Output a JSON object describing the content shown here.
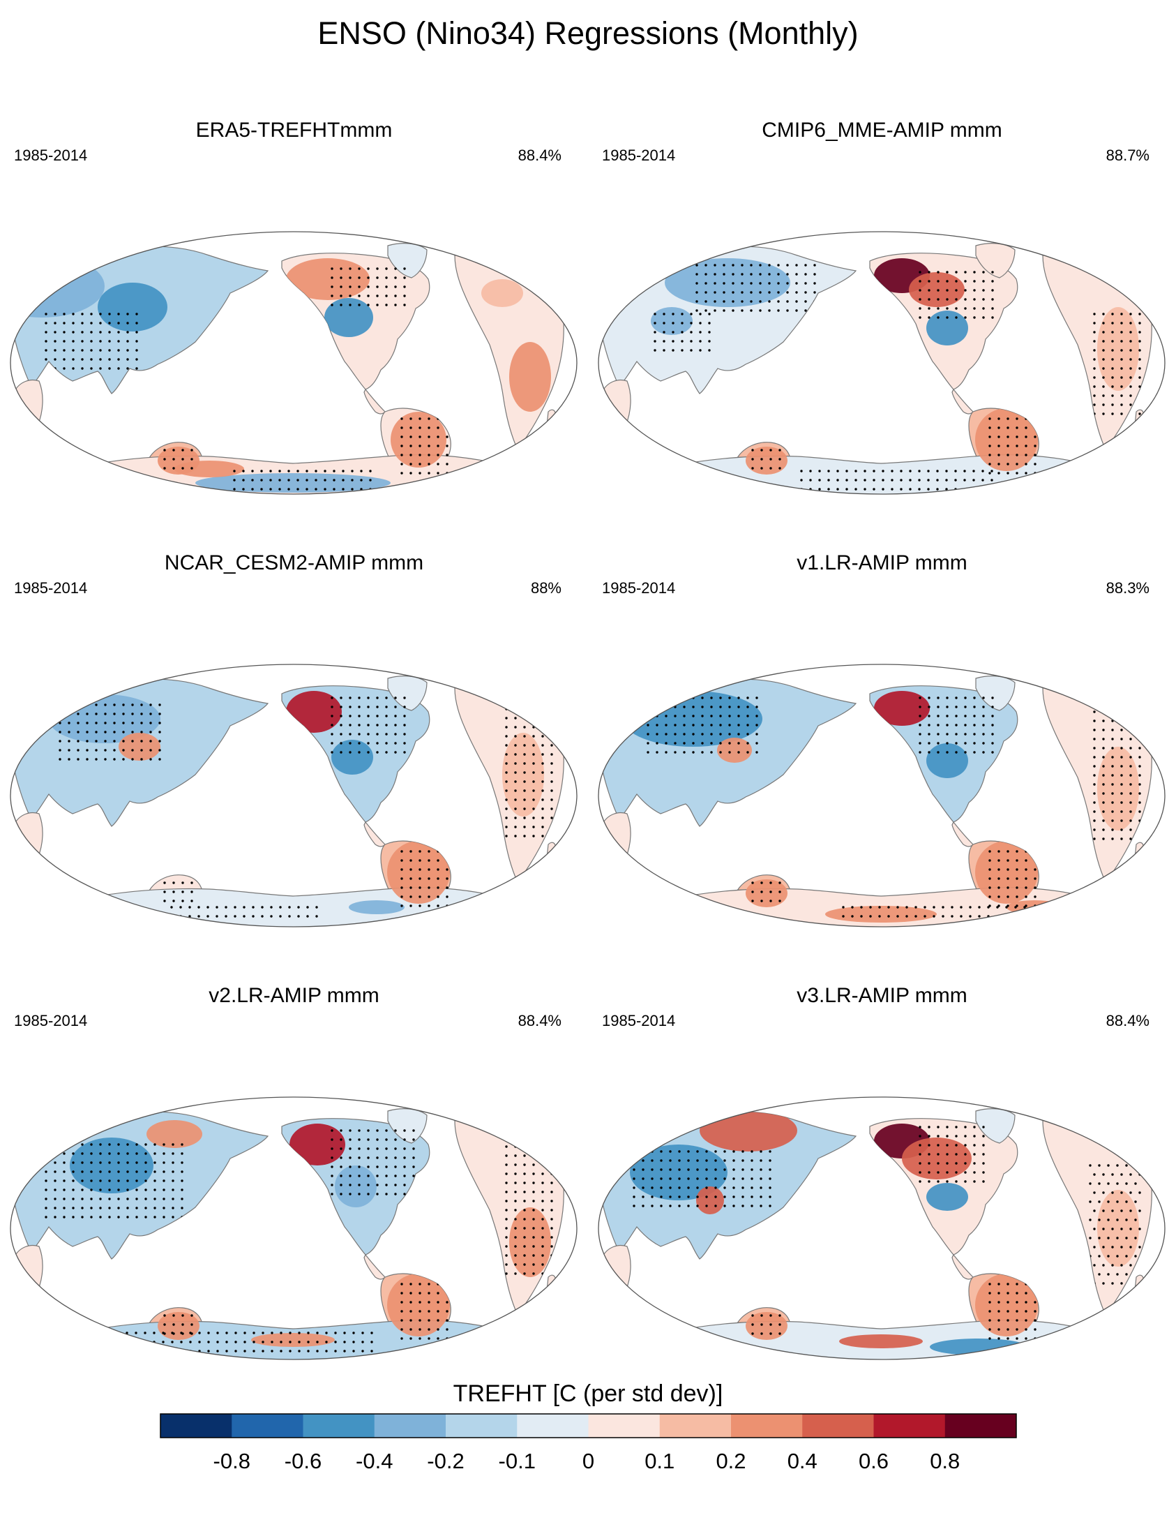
{
  "title": "ENSO (Nino34) Regressions (Monthly)",
  "panels": [
    {
      "title": "ERA5-TREFHTmmm",
      "period": "1985-2014",
      "pct": "88.4%"
    },
    {
      "title": "CMIP6_MME-AMIP  mmm",
      "period": "1985-2014",
      "pct": "88.7%"
    },
    {
      "title": "NCAR_CESM2-AMIP  mmm",
      "period": "1985-2014",
      "pct": "88%"
    },
    {
      "title": "v1.LR-AMIP  mmm",
      "period": "1985-2014",
      "pct": "88.3%"
    },
    {
      "title": "v2.LR-AMIP  mmm",
      "period": "1985-2014",
      "pct": "88.4%"
    },
    {
      "title": "v3.LR-AMIP  mmm",
      "period": "1985-2014",
      "pct": "88.4%"
    }
  ],
  "colorbar": {
    "title": "TREFHT [C (per std dev)]",
    "labels": [
      "-0.8",
      "-0.6",
      "-0.4",
      "-0.2",
      "-0.1",
      "0",
      "0.1",
      "0.2",
      "0.4",
      "0.6",
      "0.8"
    ],
    "colors": [
      "#08306b",
      "#2166ac",
      "#4393c3",
      "#7fb2d9",
      "#b4d5ea",
      "#e2ecf4",
      "#fbe6df",
      "#f6bca4",
      "#ec9171",
      "#d6604d",
      "#b2182b",
      "#67001f"
    ]
  }
}
